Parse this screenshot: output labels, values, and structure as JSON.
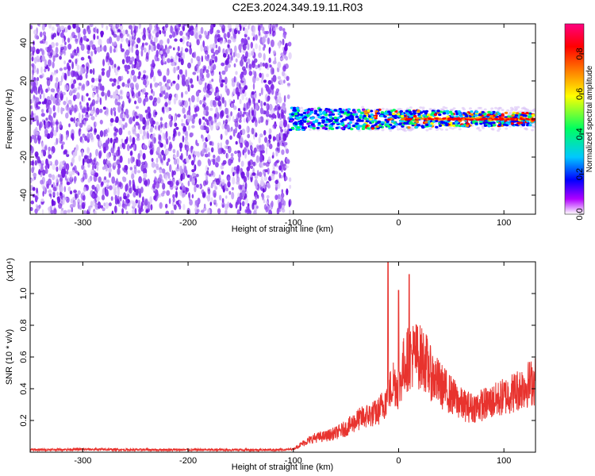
{
  "title": "C2E3.2024.349.19.11.R03",
  "colors": {
    "snr_line": "#e8332e",
    "scatter_background": "#7a22e8",
    "scatter_light": "#c7a3f2",
    "colormap": [
      "#ffffff",
      "#8800ff",
      "#0000ff",
      "#00c8ff",
      "#00ff40",
      "#ffff00",
      "#ff8800",
      "#ff0000",
      "#ff00aa"
    ]
  },
  "chart_data": [
    {
      "type": "heatmap",
      "xlabel": "Height of straight line (km)",
      "ylabel": "Frequency (Hz)",
      "xlim": [
        -350,
        130
      ],
      "ylim": [
        -50,
        50
      ],
      "xticks": [
        -300,
        -200,
        -100,
        0,
        100
      ],
      "yticks": [
        -40,
        -20,
        0,
        20,
        40
      ],
      "colorbar": {
        "label": "Normalized spectral amplitude",
        "range": [
          0,
          0.95
        ],
        "ticks": [
          "0.0",
          "0.2",
          "0.4",
          "0.6",
          "0.8"
        ],
        "tick_values": [
          0,
          0.2,
          0.4,
          0.6,
          0.8
        ]
      },
      "regions": [
        {
          "x_range": [
            -350,
            -103
          ],
          "y_range": [
            -50,
            50
          ],
          "amplitude_range": [
            0.0,
            0.1
          ],
          "description": "broadband noise"
        },
        {
          "x_range": [
            -103,
            130
          ],
          "center_frequency": 0,
          "half_width_hz": 4,
          "amplitude_range": [
            0.1,
            0.95
          ]
        }
      ]
    },
    {
      "type": "line",
      "xlabel": "Height of straight line (km)",
      "ylabel": "SNR (10 * v/v)",
      "y_multiplier": "(x10⁴)",
      "xlim": [
        -350,
        130
      ],
      "ylim": [
        0,
        1.2
      ],
      "xticks": [
        -300,
        -200,
        -100,
        0,
        100
      ],
      "yticks": [
        0.2,
        0.4,
        0.6,
        0.8,
        1.0
      ],
      "series": [
        {
          "x": [
            -350,
            -300,
            -250,
            -200,
            -150,
            -110,
            -100,
            -90,
            -80,
            -70,
            -60,
            -50,
            -40,
            -30,
            -20,
            -10,
            -5,
            0,
            5,
            10,
            15,
            20,
            25,
            30,
            40,
            50,
            60,
            70,
            80,
            90,
            100,
            110,
            120,
            130
          ],
          "y": [
            0.015,
            0.018,
            0.015,
            0.015,
            0.015,
            0.015,
            0.02,
            0.06,
            0.09,
            0.1,
            0.12,
            0.15,
            0.2,
            0.23,
            0.25,
            0.35,
            0.45,
            0.4,
            0.55,
            0.6,
            0.62,
            0.6,
            0.58,
            0.5,
            0.42,
            0.36,
            0.3,
            0.28,
            0.3,
            0.32,
            0.35,
            0.38,
            0.42,
            0.45
          ],
          "spikes": [
            [
              -10,
              1.2
            ],
            [
              10,
              1.12
            ],
            [
              0,
              1.02
            ]
          ]
        }
      ]
    }
  ]
}
